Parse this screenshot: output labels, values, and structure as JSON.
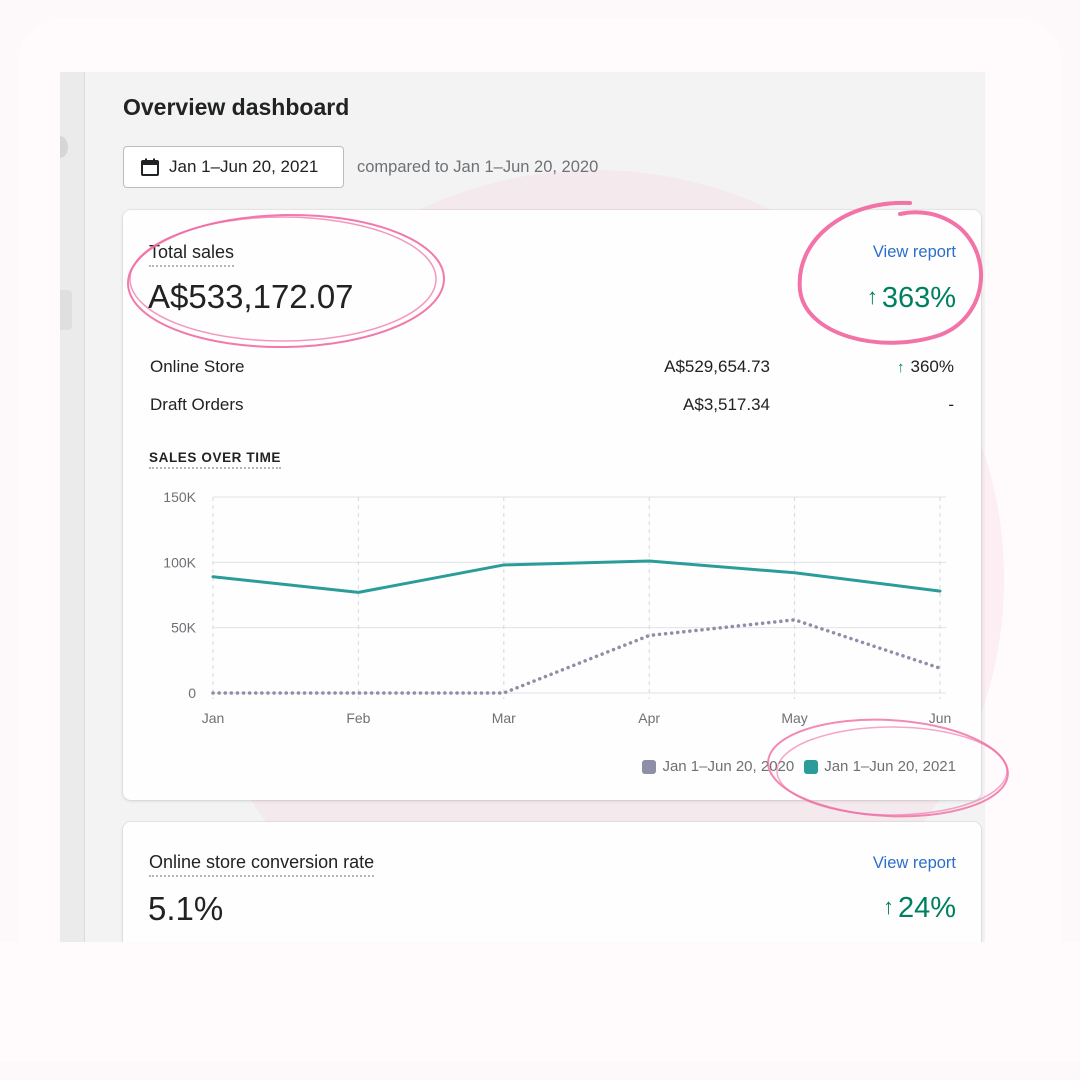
{
  "page": {
    "title": "Overview dashboard"
  },
  "date_filter": {
    "selected_range": "Jan 1–Jun 20, 2021",
    "comparison_text": "compared to Jan 1–Jun 20, 2020"
  },
  "total_sales": {
    "label": "Total sales",
    "value": "A$533,172.07",
    "view_report": "View report",
    "growth": "363%",
    "breakdown": [
      {
        "label": "Online Store",
        "value": "A$529,654.73",
        "change": "360%",
        "arrow": "↑"
      },
      {
        "label": "Draft Orders",
        "value": "A$3,517.34",
        "change": "-",
        "arrow": ""
      }
    ],
    "chart_title": "SALES OVER TIME"
  },
  "conversion": {
    "label": "Online store conversion rate",
    "value": "5.1%",
    "view_report": "View report",
    "growth": "24%"
  },
  "icons": {
    "calendar": "calendar-icon",
    "growth_arrow": "arrow-up-icon"
  },
  "colors": {
    "positive": "#008060",
    "link": "#2c6ecb",
    "series_current": "#2a9d9a",
    "series_previous": "#8e8ea6",
    "highlight_ink": "#f06ba2"
  },
  "chart_data": {
    "type": "line",
    "x": [
      "Jan",
      "Feb",
      "Mar",
      "Apr",
      "May",
      "Jun"
    ],
    "y_ticks": [
      "0",
      "50K",
      "100K",
      "150K"
    ],
    "ylim": [
      0,
      150000
    ],
    "grid": true,
    "legend_position": "bottom-right",
    "series": [
      {
        "name": "Jan 1–Jun 20, 2020",
        "style": "dotted",
        "color": "#8e8ea6",
        "values": [
          0,
          0,
          0,
          44000,
          56000,
          19000
        ]
      },
      {
        "name": "Jan 1–Jun 20, 2021",
        "style": "solid",
        "color": "#2a9d9a",
        "values": [
          89000,
          77000,
          98000,
          101000,
          92000,
          78000
        ]
      }
    ]
  }
}
